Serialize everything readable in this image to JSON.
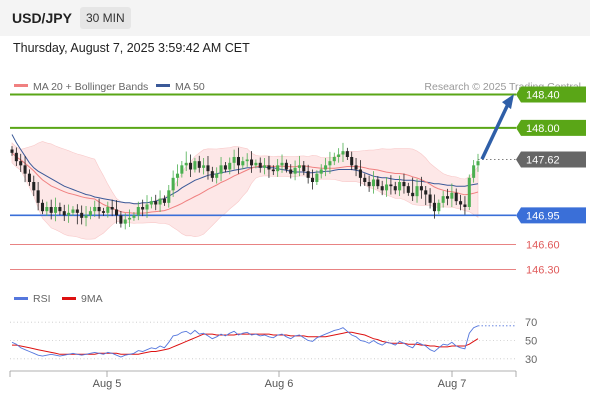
{
  "header": {
    "symbol": "USD/JPY",
    "timeframe": "30 MIN",
    "datetime": "Thursday, August 7, 2025 3:59:42 AM CET"
  },
  "legend": {
    "ma20": "MA 20 + Bollinger Bands",
    "ma50": "MA 50",
    "copyright": "Research © 2025 Trading Central"
  },
  "colors": {
    "up": "#4caf50",
    "down": "#222222",
    "ma20": "#f08080",
    "ma50": "#3b5998",
    "bb_fill": "#fde2e2",
    "resistance": "#5aa617",
    "support_pivot": "#3a6fd8",
    "support": "#e05a5a",
    "current": "#333333",
    "rsi": "#5577dd",
    "rsi_ma": "#dd1111",
    "arrow": "#2f5fa8"
  },
  "chart_data": [
    {
      "type": "candlestick",
      "x_labels": [
        "Aug 5",
        "Aug 6",
        "Aug 7"
      ],
      "ylim": [
        146.15,
        148.55
      ],
      "levels": [
        {
          "value": 148.4,
          "label": "148.40",
          "kind": "resistance"
        },
        {
          "value": 148.0,
          "label": "148.00",
          "kind": "resistance"
        },
        {
          "value": 147.62,
          "label": "147.62",
          "kind": "current"
        },
        {
          "value": 146.95,
          "label": "146.95",
          "kind": "pivot"
        },
        {
          "value": 146.6,
          "label": "146.60",
          "kind": "support"
        },
        {
          "value": 146.3,
          "label": "146.30",
          "kind": "support"
        }
      ],
      "close": [
        147.7,
        147.6,
        147.55,
        147.45,
        147.35,
        147.25,
        147.1,
        147.0,
        147.05,
        146.98,
        147.05,
        147.0,
        146.95,
        146.98,
        147.02,
        146.98,
        146.92,
        146.95,
        147.0,
        147.05,
        147.0,
        146.98,
        147.05,
        147.02,
        146.95,
        146.85,
        146.9,
        146.92,
        146.95,
        147.05,
        147.02,
        147.08,
        147.12,
        147.08,
        147.15,
        147.1,
        147.25,
        147.4,
        147.45,
        147.55,
        147.58,
        147.5,
        147.6,
        147.52,
        147.55,
        147.48,
        147.4,
        147.45,
        147.55,
        147.5,
        147.58,
        147.65,
        147.55,
        147.6,
        147.62,
        147.55,
        147.58,
        147.52,
        147.55,
        147.5,
        147.48,
        147.55,
        147.58,
        147.5,
        147.45,
        147.52,
        147.55,
        147.48,
        147.4,
        147.35,
        147.45,
        147.5,
        147.55,
        147.6,
        147.65,
        147.68,
        147.72,
        147.65,
        147.55,
        147.5,
        147.4,
        147.35,
        147.3,
        147.38,
        147.3,
        147.25,
        147.32,
        147.3,
        147.25,
        147.35,
        147.3,
        147.22,
        147.18,
        147.3,
        147.25,
        147.2,
        147.1,
        147.0,
        147.1,
        147.18,
        147.15,
        147.22,
        147.12,
        147.08,
        147.05,
        147.4,
        147.55,
        147.6
      ],
      "ma50": [
        147.92,
        147.82,
        147.74,
        147.66,
        147.58,
        147.52,
        147.48,
        147.45,
        147.42,
        147.39,
        147.36,
        147.33,
        147.3,
        147.28,
        147.26,
        147.24,
        147.22,
        147.2,
        147.19,
        147.17,
        147.16,
        147.15,
        147.14,
        147.13,
        147.12,
        147.11,
        147.1,
        147.1,
        147.09,
        147.09,
        147.1,
        147.1,
        147.11,
        147.12,
        147.14,
        147.15,
        147.18,
        147.21,
        147.24,
        147.28,
        147.31,
        147.34,
        147.37,
        147.39,
        147.41,
        147.43,
        147.44,
        147.45,
        147.46,
        147.47,
        147.48,
        147.49,
        147.5,
        147.51,
        147.52,
        147.52,
        147.53,
        147.53,
        147.53,
        147.52,
        147.52,
        147.51,
        147.5,
        147.49,
        147.48,
        147.47,
        147.47,
        147.47,
        147.46,
        147.46,
        147.47,
        147.47,
        147.48,
        147.48,
        147.49,
        147.5,
        147.5,
        147.5,
        147.5,
        147.49,
        147.48,
        147.46,
        147.44,
        147.42,
        147.41,
        147.4,
        147.4,
        147.39,
        147.38,
        147.38,
        147.37,
        147.37,
        147.37,
        147.36,
        147.36,
        147.35,
        147.34,
        147.33,
        147.33,
        147.32,
        147.31,
        147.31,
        147.3,
        147.3,
        147.3,
        147.31,
        147.32,
        147.33
      ]
    },
    {
      "type": "line",
      "name": "RSI",
      "ma_name": "9MA",
      "ylim": [
        20,
        80
      ],
      "ticks": [
        70,
        50,
        30
      ],
      "rsi": [
        48,
        46,
        42,
        40,
        38,
        36,
        34,
        33,
        34,
        35,
        34,
        33,
        34,
        35,
        36,
        35,
        34,
        35,
        36,
        37,
        36,
        35,
        37,
        36,
        34,
        32,
        34,
        35,
        36,
        39,
        38,
        40,
        42,
        41,
        44,
        42,
        48,
        55,
        56,
        59,
        60,
        57,
        61,
        57,
        58,
        55,
        52,
        54,
        57,
        55,
        58,
        60,
        56,
        58,
        59,
        56,
        57,
        55,
        56,
        54,
        53,
        56,
        57,
        54,
        52,
        55,
        56,
        53,
        50,
        49,
        53,
        55,
        57,
        59,
        61,
        62,
        64,
        60,
        56,
        54,
        50,
        49,
        47,
        50,
        47,
        45,
        48,
        47,
        45,
        49,
        47,
        44,
        42,
        48,
        46,
        44,
        40,
        38,
        42,
        46,
        45,
        48,
        44,
        42,
        41,
        58,
        64,
        66
      ],
      "rsi_ma": [
        45,
        45,
        44,
        43,
        42,
        41,
        40,
        39,
        38,
        37,
        36,
        35,
        35,
        35,
        35,
        35,
        35,
        35,
        35,
        35,
        36,
        36,
        36,
        36,
        36,
        35,
        35,
        35,
        35,
        35,
        36,
        37,
        38,
        38,
        39,
        40,
        41,
        43,
        45,
        47,
        49,
        51,
        53,
        55,
        57,
        57,
        57,
        56,
        56,
        56,
        56,
        56,
        57,
        57,
        57,
        57,
        57,
        57,
        57,
        57,
        56,
        56,
        56,
        56,
        55,
        55,
        55,
        55,
        54,
        54,
        54,
        54,
        54,
        55,
        56,
        57,
        58,
        59,
        59,
        58,
        57,
        56,
        54,
        52,
        51,
        49,
        48,
        47,
        47,
        47,
        47,
        46,
        46,
        46,
        45,
        45,
        44,
        44,
        43,
        43,
        43,
        44,
        44,
        44,
        44,
        46,
        49,
        52
      ]
    }
  ]
}
